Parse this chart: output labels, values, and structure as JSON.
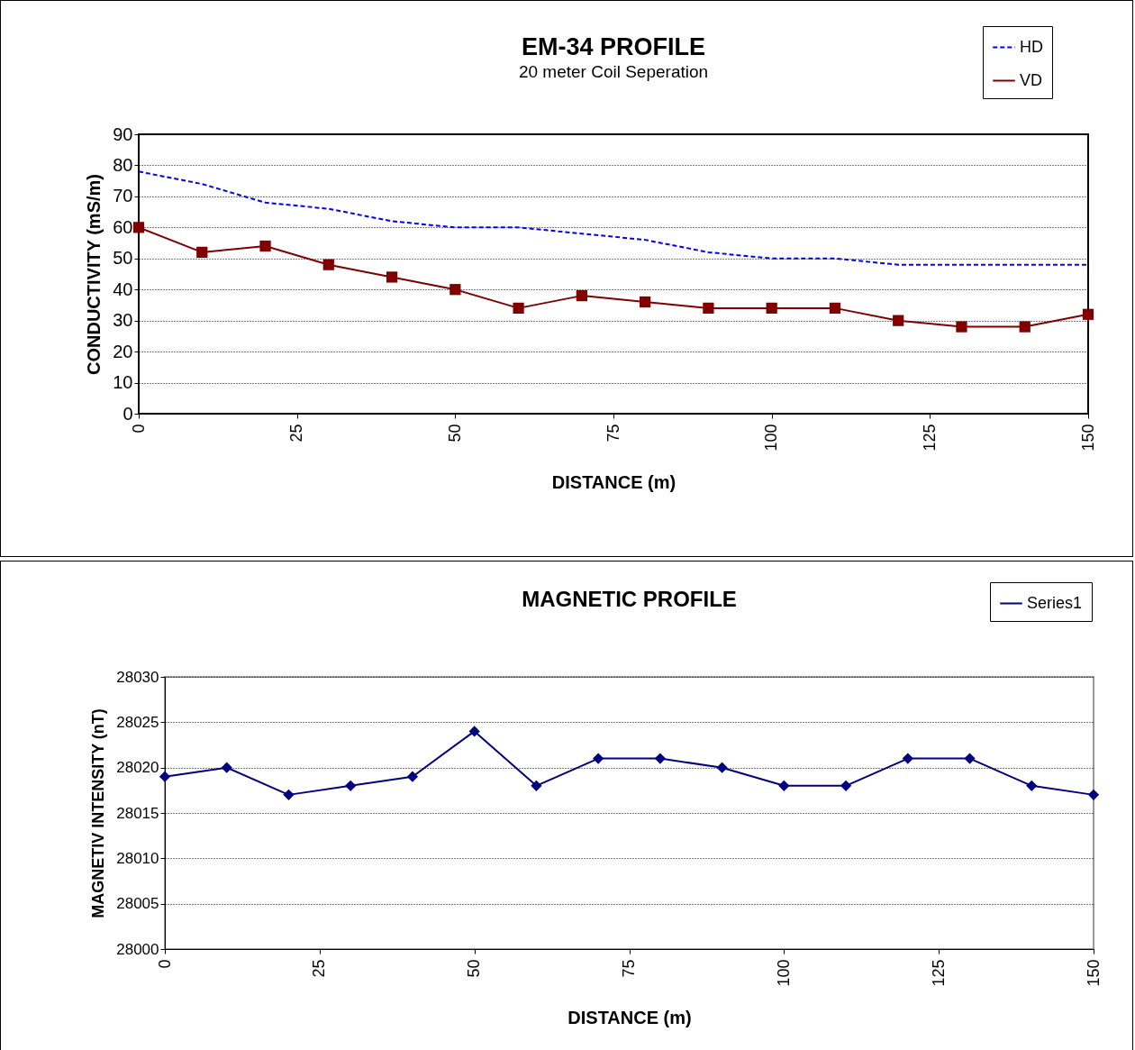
{
  "chart_data": [
    {
      "type": "line",
      "title": "EM-34 PROFILE",
      "subtitle": "20 meter Coil Seperation",
      "xlabel": "DISTANCE  (m)",
      "ylabel": "CONDUCTIVITY  (mS/m)",
      "x": [
        0,
        10,
        20,
        30,
        40,
        50,
        60,
        70,
        80,
        90,
        100,
        110,
        120,
        130,
        140,
        150
      ],
      "series": [
        {
          "name": "HD",
          "color": "#0000ff",
          "line_style": "dashed",
          "marker": "none",
          "values": [
            78,
            74,
            68,
            66,
            62,
            60,
            60,
            58,
            56,
            52,
            50,
            50,
            48,
            48,
            48,
            48
          ]
        },
        {
          "name": "VD",
          "color": "#800000",
          "line_style": "solid",
          "marker": "square",
          "values": [
            60,
            52,
            54,
            48,
            44,
            40,
            34,
            38,
            36,
            34,
            34,
            34,
            30,
            28,
            28,
            32
          ]
        }
      ],
      "xlim": [
        0,
        150
      ],
      "xticks": [
        0,
        25,
        50,
        75,
        100,
        125,
        150
      ],
      "ylim": [
        0,
        90
      ],
      "yticks": [
        0,
        10,
        20,
        30,
        40,
        50,
        60,
        70,
        80,
        90
      ],
      "grid": "y",
      "legend": "top right"
    },
    {
      "type": "line",
      "title": "MAGNETIC PROFILE",
      "xlabel": "DISTANCE  (m)",
      "ylabel": "MAGNETIV INTENSITY (nT)",
      "x": [
        0,
        10,
        20,
        30,
        40,
        50,
        60,
        70,
        80,
        90,
        100,
        110,
        120,
        130,
        140,
        150
      ],
      "series": [
        {
          "name": "Series1",
          "color": "#000080",
          "line_style": "solid",
          "marker": "diamond",
          "values": [
            28019,
            28020,
            28017,
            28018,
            28019,
            28024,
            28018,
            28021,
            28021,
            28020,
            28018,
            28018,
            28021,
            28021,
            28018,
            28017
          ]
        }
      ],
      "xlim": [
        0,
        150
      ],
      "xticks": [
        0,
        25,
        50,
        75,
        100,
        125,
        150
      ],
      "ylim": [
        28000,
        28030
      ],
      "yticks": [
        28000,
        28005,
        28010,
        28015,
        28020,
        28025,
        28030
      ],
      "grid": "y",
      "legend": "top right"
    }
  ]
}
